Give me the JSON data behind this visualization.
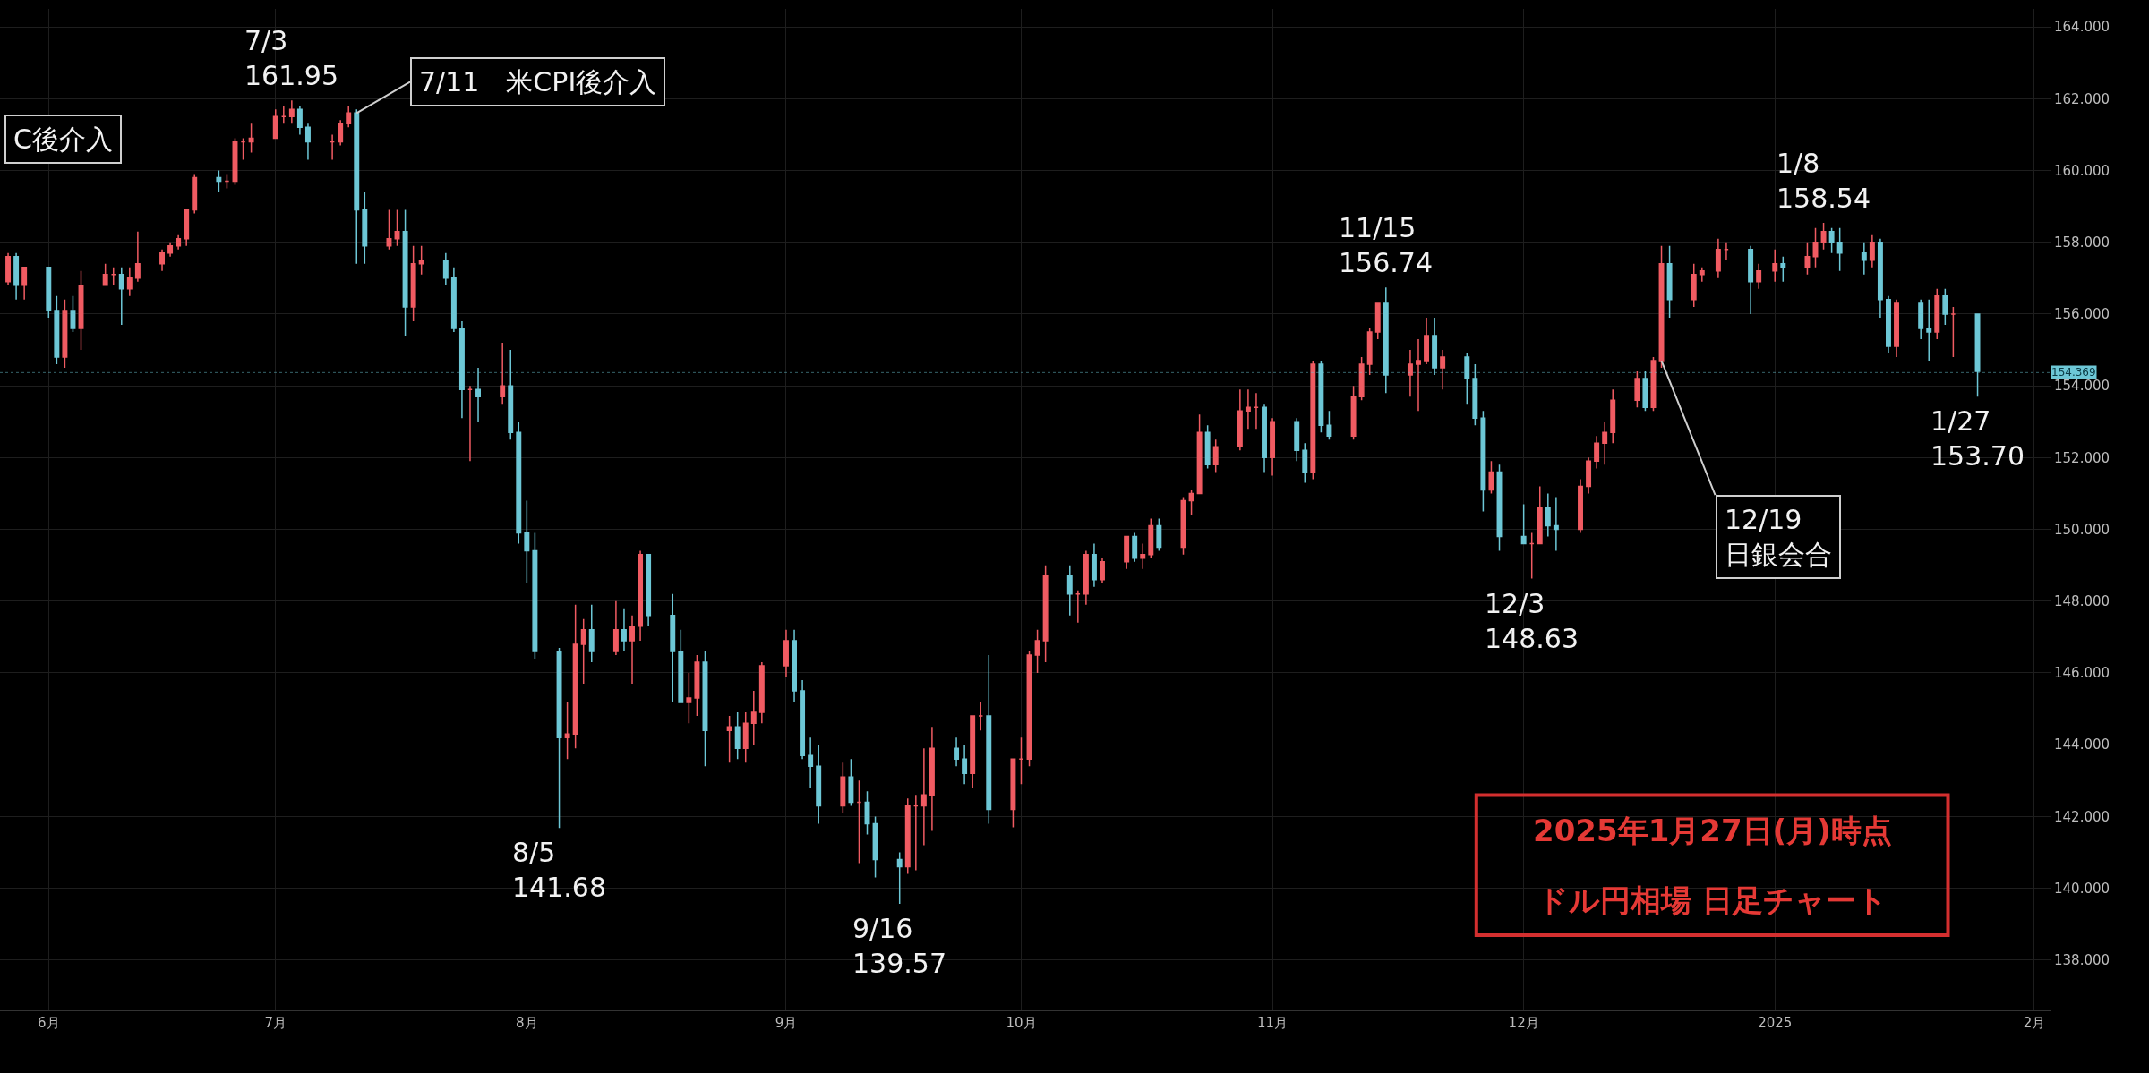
{
  "chart_data": {
    "type": "candlestick",
    "title": "2025年1月27日(月)時点",
    "subtitle": "ドル円相場 日足チャート",
    "x": [
      "2024-05-29",
      "2024-05-30",
      "2024-05-31",
      "2024-06-03",
      "2024-06-04",
      "2024-06-05",
      "2024-06-06",
      "2024-06-07",
      "2024-06-10",
      "2024-06-11",
      "2024-06-12",
      "2024-06-13",
      "2024-06-14",
      "2024-06-17",
      "2024-06-18",
      "2024-06-19",
      "2024-06-20",
      "2024-06-21",
      "2024-06-24",
      "2024-06-25",
      "2024-06-26",
      "2024-06-27",
      "2024-06-28",
      "2024-07-01",
      "2024-07-02",
      "2024-07-03",
      "2024-07-04",
      "2024-07-05",
      "2024-07-08",
      "2024-07-09",
      "2024-07-10",
      "2024-07-11",
      "2024-07-12",
      "2024-07-15",
      "2024-07-16",
      "2024-07-17",
      "2024-07-18",
      "2024-07-19",
      "2024-07-22",
      "2024-07-23",
      "2024-07-24",
      "2024-07-25",
      "2024-07-26",
      "2024-07-29",
      "2024-07-30",
      "2024-07-31",
      "2024-08-01",
      "2024-08-02",
      "2024-08-05",
      "2024-08-06",
      "2024-08-07",
      "2024-08-08",
      "2024-08-09",
      "2024-08-12",
      "2024-08-13",
      "2024-08-14",
      "2024-08-15",
      "2024-08-16",
      "2024-08-19",
      "2024-08-20",
      "2024-08-21",
      "2024-08-22",
      "2024-08-23",
      "2024-08-26",
      "2024-08-27",
      "2024-08-28",
      "2024-08-29",
      "2024-08-30",
      "2024-09-02",
      "2024-09-03",
      "2024-09-04",
      "2024-09-05",
      "2024-09-06",
      "2024-09-09",
      "2024-09-10",
      "2024-09-11",
      "2024-09-12",
      "2024-09-13",
      "2024-09-16",
      "2024-09-17",
      "2024-09-18",
      "2024-09-19",
      "2024-09-20",
      "2024-09-23",
      "2024-09-24",
      "2024-09-25",
      "2024-09-26",
      "2024-09-27",
      "2024-09-30",
      "2024-10-01",
      "2024-10-02",
      "2024-10-03",
      "2024-10-04",
      "2024-10-07",
      "2024-10-08",
      "2024-10-09",
      "2024-10-10",
      "2024-10-11",
      "2024-10-14",
      "2024-10-15",
      "2024-10-16",
      "2024-10-17",
      "2024-10-18",
      "2024-10-21",
      "2024-10-22",
      "2024-10-23",
      "2024-10-24",
      "2024-10-25",
      "2024-10-28",
      "2024-10-29",
      "2024-10-30",
      "2024-10-31",
      "2024-11-01",
      "2024-11-04",
      "2024-11-05",
      "2024-11-06",
      "2024-11-07",
      "2024-11-08",
      "2024-11-11",
      "2024-11-12",
      "2024-11-13",
      "2024-11-14",
      "2024-11-15",
      "2024-11-18",
      "2024-11-19",
      "2024-11-20",
      "2024-11-21",
      "2024-11-22",
      "2024-11-25",
      "2024-11-26",
      "2024-11-27",
      "2024-11-28",
      "2024-11-29",
      "2024-12-02",
      "2024-12-03",
      "2024-12-04",
      "2024-12-05",
      "2024-12-06",
      "2024-12-09",
      "2024-12-10",
      "2024-12-11",
      "2024-12-12",
      "2024-12-13",
      "2024-12-16",
      "2024-12-17",
      "2024-12-18",
      "2024-12-19",
      "2024-12-20",
      "2024-12-23",
      "2024-12-24",
      "2024-12-26",
      "2024-12-27",
      "2024-12-30",
      "2024-12-31",
      "2025-01-02",
      "2025-01-03",
      "2025-01-06",
      "2025-01-07",
      "2025-01-08",
      "2025-01-09",
      "2025-01-10",
      "2025-01-13",
      "2025-01-14",
      "2025-01-15",
      "2025-01-16",
      "2025-01-17",
      "2025-01-20",
      "2025-01-21",
      "2025-01-22",
      "2025-01-23",
      "2025-01-24",
      "2025-01-27"
    ],
    "ohlc": [
      [
        156.9,
        157.7,
        156.8,
        157.6
      ],
      [
        157.6,
        157.7,
        156.4,
        156.8
      ],
      [
        156.8,
        157.3,
        156.4,
        157.3
      ],
      [
        157.3,
        157.3,
        155.9,
        156.1
      ],
      [
        156.1,
        156.5,
        154.6,
        154.8
      ],
      [
        154.8,
        156.4,
        154.5,
        156.1
      ],
      [
        156.1,
        156.5,
        155.5,
        155.6
      ],
      [
        155.6,
        157.2,
        155.0,
        156.8
      ],
      [
        156.8,
        157.4,
        156.8,
        157.1
      ],
      [
        157.1,
        157.3,
        156.8,
        157.1
      ],
      [
        157.1,
        157.3,
        155.7,
        156.7
      ],
      [
        156.7,
        157.3,
        156.5,
        157.0
      ],
      [
        157.0,
        158.3,
        156.9,
        157.4
      ],
      [
        157.4,
        157.8,
        157.2,
        157.7
      ],
      [
        157.7,
        158.0,
        157.6,
        157.9
      ],
      [
        157.9,
        158.2,
        157.8,
        158.1
      ],
      [
        158.1,
        158.9,
        157.9,
        158.9
      ],
      [
        158.9,
        159.9,
        158.8,
        159.8
      ],
      [
        159.8,
        160.0,
        159.4,
        159.7
      ],
      [
        159.7,
        159.9,
        159.5,
        159.7
      ],
      [
        159.7,
        160.9,
        159.6,
        160.8
      ],
      [
        160.8,
        160.9,
        160.3,
        160.8
      ],
      [
        160.8,
        161.3,
        160.5,
        160.9
      ],
      [
        160.9,
        161.7,
        160.9,
        161.5
      ],
      [
        161.5,
        161.8,
        161.3,
        161.5
      ],
      [
        161.5,
        161.95,
        161.3,
        161.7
      ],
      [
        161.7,
        161.8,
        161.0,
        161.2
      ],
      [
        161.2,
        161.3,
        160.3,
        160.8
      ],
      [
        160.8,
        161.0,
        160.3,
        160.8
      ],
      [
        160.8,
        161.4,
        160.7,
        161.3
      ],
      [
        161.3,
        161.8,
        161.2,
        161.6
      ],
      [
        161.6,
        161.7,
        157.4,
        158.9
      ],
      [
        158.9,
        159.4,
        157.4,
        157.9
      ],
      [
        157.9,
        158.9,
        157.8,
        158.1
      ],
      [
        158.1,
        158.9,
        157.9,
        158.3
      ],
      [
        158.3,
        158.9,
        155.4,
        156.2
      ],
      [
        156.2,
        157.9,
        155.8,
        157.4
      ],
      [
        157.4,
        157.9,
        157.1,
        157.5
      ],
      [
        157.5,
        157.7,
        156.8,
        157.0
      ],
      [
        157.0,
        157.3,
        155.5,
        155.6
      ],
      [
        155.6,
        155.8,
        153.1,
        153.9
      ],
      [
        153.9,
        154.0,
        151.9,
        153.9
      ],
      [
        153.9,
        154.5,
        153.0,
        153.7
      ],
      [
        153.7,
        155.2,
        153.5,
        154.0
      ],
      [
        154.0,
        155.0,
        152.5,
        152.7
      ],
      [
        152.7,
        153.0,
        149.6,
        149.9
      ],
      [
        149.9,
        150.8,
        148.5,
        149.4
      ],
      [
        149.4,
        149.9,
        146.4,
        146.6
      ],
      [
        146.6,
        146.7,
        141.68,
        144.2
      ],
      [
        144.2,
        145.2,
        143.6,
        144.3
      ],
      [
        144.3,
        147.9,
        143.9,
        146.8
      ],
      [
        146.8,
        147.5,
        145.7,
        147.2
      ],
      [
        147.2,
        147.9,
        146.3,
        146.6
      ],
      [
        146.6,
        148.0,
        146.5,
        147.2
      ],
      [
        147.2,
        147.8,
        146.6,
        146.9
      ],
      [
        146.9,
        147.6,
        145.7,
        147.3
      ],
      [
        147.3,
        149.4,
        146.9,
        149.3
      ],
      [
        149.3,
        149.3,
        147.3,
        147.6
      ],
      [
        147.6,
        148.2,
        145.2,
        146.6
      ],
      [
        146.6,
        147.2,
        145.2,
        145.2
      ],
      [
        145.2,
        146.0,
        144.6,
        145.3
      ],
      [
        145.3,
        146.5,
        144.8,
        146.3
      ],
      [
        146.3,
        146.6,
        143.4,
        144.4
      ],
      [
        144.4,
        144.8,
        143.5,
        144.5
      ],
      [
        144.5,
        144.9,
        143.6,
        143.9
      ],
      [
        143.9,
        144.9,
        143.5,
        144.6
      ],
      [
        144.6,
        145.5,
        144.0,
        144.9
      ],
      [
        144.9,
        146.3,
        144.6,
        146.2
      ],
      [
        146.2,
        147.2,
        145.9,
        146.9
      ],
      [
        146.9,
        147.2,
        145.2,
        145.5
      ],
      [
        145.5,
        145.8,
        143.6,
        143.7
      ],
      [
        143.7,
        144.2,
        142.8,
        143.4
      ],
      [
        143.4,
        144.0,
        141.8,
        142.3
      ],
      [
        142.3,
        143.5,
        142.1,
        143.1
      ],
      [
        143.1,
        143.6,
        142.3,
        142.4
      ],
      [
        142.4,
        143.0,
        140.7,
        142.4
      ],
      [
        142.4,
        142.7,
        141.5,
        141.8
      ],
      [
        141.8,
        142.0,
        140.3,
        140.8
      ],
      [
        140.8,
        141.0,
        139.57,
        140.6
      ],
      [
        140.6,
        142.5,
        140.4,
        142.3
      ],
      [
        142.3,
        142.6,
        140.5,
        142.3
      ],
      [
        142.3,
        143.9,
        141.2,
        142.6
      ],
      [
        142.6,
        144.5,
        141.6,
        143.9
      ],
      [
        143.9,
        144.2,
        143.4,
        143.6
      ],
      [
        143.6,
        144.0,
        142.9,
        143.2
      ],
      [
        143.2,
        144.8,
        142.8,
        144.8
      ],
      [
        144.8,
        145.2,
        144.4,
        144.8
      ],
      [
        144.8,
        146.5,
        141.8,
        142.2
      ],
      [
        142.2,
        143.6,
        141.7,
        143.6
      ],
      [
        143.6,
        144.2,
        142.9,
        143.6
      ],
      [
        143.6,
        146.6,
        143.4,
        146.5
      ],
      [
        146.5,
        147.2,
        146.0,
        146.9
      ],
      [
        146.9,
        149.0,
        146.3,
        148.7
      ],
      [
        148.7,
        149.0,
        147.6,
        148.2
      ],
      [
        148.2,
        148.3,
        147.4,
        148.2
      ],
      [
        148.2,
        149.4,
        147.9,
        149.3
      ],
      [
        149.3,
        149.6,
        148.4,
        148.6
      ],
      [
        148.6,
        149.2,
        148.5,
        149.1
      ],
      [
        149.1,
        149.8,
        148.9,
        149.8
      ],
      [
        149.8,
        149.9,
        149.1,
        149.2
      ],
      [
        149.2,
        149.6,
        148.9,
        149.3
      ],
      [
        149.3,
        150.3,
        149.2,
        150.1
      ],
      [
        150.1,
        150.3,
        149.4,
        149.5
      ],
      [
        149.5,
        150.9,
        149.3,
        150.8
      ],
      [
        150.8,
        151.1,
        150.4,
        151.0
      ],
      [
        151.0,
        153.2,
        151.0,
        152.7
      ],
      [
        152.7,
        152.9,
        151.7,
        151.8
      ],
      [
        151.8,
        152.5,
        151.6,
        152.3
      ],
      [
        152.3,
        153.9,
        152.2,
        153.3
      ],
      [
        153.3,
        153.9,
        152.8,
        153.4
      ],
      [
        153.4,
        153.8,
        152.8,
        153.4
      ],
      [
        153.4,
        153.5,
        151.6,
        152.0
      ],
      [
        152.0,
        153.1,
        151.5,
        153.0
      ],
      [
        153.0,
        153.1,
        151.9,
        152.2
      ],
      [
        152.2,
        152.4,
        151.3,
        151.6
      ],
      [
        151.6,
        154.7,
        151.4,
        154.6
      ],
      [
        154.6,
        154.7,
        152.7,
        152.9
      ],
      [
        152.9,
        153.3,
        152.5,
        152.6
      ],
      [
        152.6,
        154.0,
        152.5,
        153.7
      ],
      [
        153.7,
        154.8,
        153.6,
        154.6
      ],
      [
        154.6,
        155.6,
        154.3,
        155.5
      ],
      [
        155.5,
        156.3,
        155.3,
        156.3
      ],
      [
        156.3,
        156.74,
        153.8,
        154.3
      ],
      [
        154.3,
        155.0,
        153.7,
        154.6
      ],
      [
        154.6,
        155.3,
        153.3,
        154.7
      ],
      [
        154.7,
        155.9,
        154.6,
        155.4
      ],
      [
        155.4,
        155.9,
        154.3,
        154.5
      ],
      [
        154.5,
        155.0,
        153.9,
        154.8
      ],
      [
        154.8,
        154.9,
        153.5,
        154.2
      ],
      [
        154.2,
        154.6,
        152.9,
        153.1
      ],
      [
        153.1,
        153.3,
        150.5,
        151.1
      ],
      [
        151.1,
        151.9,
        151.0,
        151.6
      ],
      [
        151.6,
        151.8,
        149.4,
        149.8
      ],
      [
        149.8,
        150.7,
        149.6,
        149.6
      ],
      [
        149.6,
        149.9,
        148.63,
        149.6
      ],
      [
        149.6,
        151.2,
        149.6,
        150.6
      ],
      [
        150.6,
        151.0,
        149.8,
        150.1
      ],
      [
        150.1,
        150.9,
        149.4,
        150.0
      ],
      [
        150.0,
        151.4,
        149.9,
        151.2
      ],
      [
        151.2,
        152.0,
        151.0,
        151.9
      ],
      [
        151.9,
        152.6,
        151.7,
        152.4
      ],
      [
        152.4,
        153.0,
        151.8,
        152.7
      ],
      [
        152.7,
        153.9,
        152.4,
        153.6
      ],
      [
        153.6,
        154.4,
        153.4,
        154.2
      ],
      [
        154.2,
        154.4,
        153.3,
        153.4
      ],
      [
        153.4,
        154.8,
        153.3,
        154.7
      ],
      [
        154.7,
        157.9,
        154.5,
        157.4
      ],
      [
        157.4,
        157.9,
        155.9,
        156.4
      ],
      [
        156.4,
        157.4,
        156.2,
        157.1
      ],
      [
        157.1,
        157.3,
        156.9,
        157.2
      ],
      [
        157.2,
        158.1,
        157.0,
        157.8
      ],
      [
        157.8,
        158.0,
        157.5,
        157.8
      ],
      [
        157.8,
        157.9,
        156.0,
        156.9
      ],
      [
        156.9,
        157.4,
        156.7,
        157.2
      ],
      [
        157.2,
        157.8,
        156.9,
        157.4
      ],
      [
        157.4,
        157.6,
        156.9,
        157.3
      ],
      [
        157.3,
        158.0,
        157.1,
        157.6
      ],
      [
        157.6,
        158.4,
        157.3,
        158.0
      ],
      [
        158.0,
        158.54,
        157.8,
        158.3
      ],
      [
        158.3,
        158.4,
        157.7,
        158.0
      ],
      [
        158.0,
        158.4,
        157.2,
        157.7
      ],
      [
        157.7,
        158.0,
        157.1,
        157.5
      ],
      [
        157.5,
        158.2,
        157.3,
        158.0
      ],
      [
        158.0,
        158.1,
        155.9,
        156.4
      ],
      [
        156.4,
        156.5,
        154.9,
        155.1
      ],
      [
        155.1,
        156.4,
        154.8,
        156.3
      ],
      [
        156.3,
        156.4,
        155.3,
        155.6
      ],
      [
        155.6,
        156.4,
        154.7,
        155.5
      ],
      [
        155.5,
        156.7,
        155.3,
        156.5
      ],
      [
        156.5,
        156.7,
        155.7,
        156.0
      ],
      [
        156.0,
        156.2,
        154.8,
        156.0
      ],
      [
        156.0,
        156.0,
        153.7,
        154.4
      ]
    ],
    "colors": [
      "#f05b62",
      "#6dc7d6",
      "#f05b62",
      "#6dc7d6",
      "#6dc7d6",
      "#f05b62",
      "#6dc7d6",
      "#f05b62",
      "#f05b62",
      "#f05b62",
      "#6dc7d6",
      "#f05b62",
      "#f05b62",
      "#f05b62",
      "#f05b62",
      "#f05b62",
      "#f05b62",
      "#f05b62",
      "#6dc7d6",
      "#f05b62",
      "#f05b62",
      "#f05b62",
      "#f05b62",
      "#f05b62",
      "#f05b62",
      "#f05b62",
      "#6dc7d6",
      "#6dc7d6",
      "#f05b62",
      "#f05b62",
      "#f05b62",
      "#6dc7d6",
      "#6dc7d6",
      "#f05b62",
      "#f05b62",
      "#6dc7d6",
      "#f05b62",
      "#f05b62",
      "#6dc7d6",
      "#6dc7d6",
      "#6dc7d6",
      "#f05b62",
      "#6dc7d6",
      "#f05b62",
      "#6dc7d6",
      "#6dc7d6",
      "#6dc7d6",
      "#6dc7d6",
      "#6dc7d6",
      "#f05b62",
      "#f05b62",
      "#f05b62",
      "#6dc7d6",
      "#f05b62",
      "#6dc7d6",
      "#f05b62",
      "#f05b62",
      "#6dc7d6",
      "#6dc7d6",
      "#6dc7d6",
      "#f05b62",
      "#f05b62",
      "#6dc7d6",
      "#f05b62",
      "#6dc7d6",
      "#f05b62",
      "#f05b62",
      "#f05b62",
      "#f05b62",
      "#6dc7d6",
      "#6dc7d6",
      "#6dc7d6",
      "#6dc7d6",
      "#f05b62",
      "#6dc7d6",
      "#f05b62",
      "#6dc7d6",
      "#6dc7d6",
      "#6dc7d6",
      "#f05b62",
      "#f05b62",
      "#f05b62",
      "#f05b62",
      "#6dc7d6",
      "#6dc7d6",
      "#f05b62",
      "#f05b62",
      "#6dc7d6",
      "#f05b62",
      "#f05b62",
      "#f05b62",
      "#f05b62",
      "#f05b62",
      "#6dc7d6",
      "#f05b62",
      "#f05b62",
      "#6dc7d6",
      "#f05b62",
      "#f05b62",
      "#6dc7d6",
      "#f05b62",
      "#f05b62",
      "#6dc7d6",
      "#f05b62",
      "#f05b62",
      "#f05b62",
      "#6dc7d6",
      "#f05b62",
      "#f05b62",
      "#f05b62",
      "#f05b62",
      "#6dc7d6",
      "#f05b62",
      "#6dc7d6",
      "#6dc7d6",
      "#f05b62",
      "#6dc7d6",
      "#6dc7d6",
      "#f05b62",
      "#f05b62",
      "#f05b62",
      "#f05b62",
      "#6dc7d6",
      "#f05b62",
      "#f05b62",
      "#f05b62",
      "#6dc7d6",
      "#f05b62",
      "#6dc7d6",
      "#6dc7d6",
      "#6dc7d6",
      "#f05b62",
      "#6dc7d6",
      "#6dc7d6",
      "#f05b62",
      "#f05b62",
      "#6dc7d6",
      "#6dc7d6",
      "#f05b62",
      "#f05b62",
      "#f05b62",
      "#f05b62",
      "#f05b62",
      "#f05b62",
      "#6dc7d6",
      "#f05b62",
      "#f05b62",
      "#6dc7d6",
      "#f05b62",
      "#f05b62",
      "#f05b62",
      "#f05b62",
      "#6dc7d6",
      "#f05b62",
      "#f05b62",
      "#6dc7d6",
      "#f05b62",
      "#f05b62",
      "#f05b62",
      "#6dc7d6",
      "#6dc7d6",
      "#6dc7d6",
      "#f05b62",
      "#6dc7d6",
      "#6dc7d6",
      "#f05b62",
      "#6dc7d6",
      "#6dc7d6",
      "#f05b62",
      "#6dc7d6",
      "#f05b62",
      "#6dc7d6"
    ],
    "xlim": [
      "2024-05-28",
      "2025-02-05"
    ],
    "xticks": [
      {
        "value": "2024-06-03",
        "label": "6月"
      },
      {
        "value": "2024-07-01",
        "label": "7月"
      },
      {
        "value": "2024-08-01",
        "label": "8月"
      },
      {
        "value": "2024-09-02",
        "label": "9月"
      },
      {
        "value": "2024-10-01",
        "label": "10月"
      },
      {
        "value": "2024-11-01",
        "label": "11月"
      },
      {
        "value": "2024-12-02",
        "label": "12月"
      },
      {
        "value": "2025-01-02",
        "label": "2025"
      },
      {
        "value": "2025-02-03",
        "label": "2月"
      }
    ],
    "ylim": [
      136.6,
      164.5
    ],
    "yticks": [
      {
        "value": 138,
        "label": "138.000"
      },
      {
        "value": 140,
        "label": "140.000"
      },
      {
        "value": 142,
        "label": "142.000"
      },
      {
        "value": 144,
        "label": "144.000"
      },
      {
        "value": 146,
        "label": "146.000"
      },
      {
        "value": 148,
        "label": "148.000"
      },
      {
        "value": 150,
        "label": "150.000"
      },
      {
        "value": 152,
        "label": "152.000"
      },
      {
        "value": 154,
        "label": "154.000"
      },
      {
        "value": 156,
        "label": "156.000"
      },
      {
        "value": 158,
        "label": "158.000"
      },
      {
        "value": 160,
        "label": "160.000"
      },
      {
        "value": 162,
        "label": "162.000"
      },
      {
        "value": 164,
        "label": "164.000"
      }
    ],
    "grid": true,
    "ref_lines": [
      {
        "axis": "y",
        "value": 154.369,
        "label": "154.369",
        "color": "#6dc7d6",
        "line_style": "dotted"
      }
    ],
    "annotations": [
      "C後介入",
      {
        "text": "7/3\n161.95",
        "x": "2024-07-03",
        "y": 161.95
      },
      {
        "text": "7/11　米CPI後介入",
        "x": "2024-07-11",
        "y": 161.6
      },
      {
        "text": "8/5\n141.68",
        "x": "2024-08-05",
        "y": 141.68
      },
      {
        "text": "9/16\n139.57",
        "x": "2024-09-16",
        "y": 139.57
      },
      {
        "text": "11/15\n156.74",
        "x": "2024-11-15",
        "y": 156.74
      },
      {
        "text": "12/3\n148.63",
        "x": "2024-12-03",
        "y": 148.63
      },
      {
        "text": "12/19\n日銀会合",
        "x": "2024-12-19",
        "y": 154.7
      },
      {
        "text": "1/8\n158.54",
        "x": "2025-01-08",
        "y": 158.54
      },
      {
        "text": "1/27\n153.70",
        "x": "2025-01-27",
        "y": 153.7
      }
    ]
  }
}
